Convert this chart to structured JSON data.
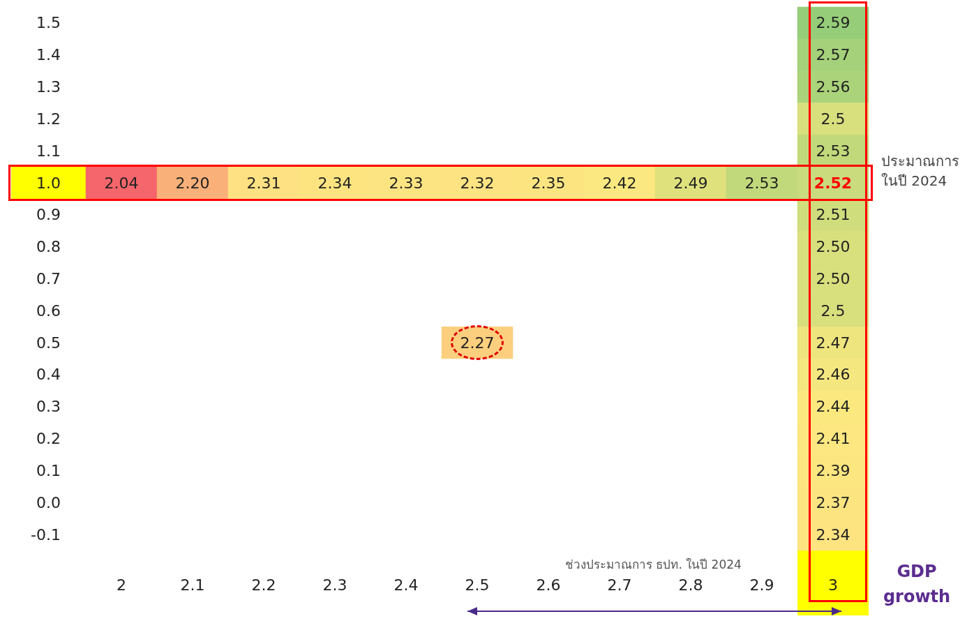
{
  "chart_data": {
    "type": "heatmap",
    "xlabel": "GDP growth",
    "categories": [
      "2",
      "2.1",
      "2.2",
      "2.3",
      "2.4",
      "2.5",
      "2.6",
      "2.7",
      "2.8",
      "2.9",
      "3"
    ],
    "y_categories": [
      "1.5",
      "1.4",
      "1.3",
      "1.2",
      "1.1",
      "1.0",
      "0.9",
      "0.8",
      "0.7",
      "0.6",
      "0.5",
      "0.4",
      "0.3",
      "0.2",
      "0.1",
      "0.0",
      "-0.1"
    ],
    "cells": [
      [
        null,
        null,
        null,
        null,
        null,
        null,
        null,
        null,
        null,
        null,
        2.59
      ],
      [
        null,
        null,
        null,
        null,
        null,
        null,
        null,
        null,
        null,
        null,
        2.57
      ],
      [
        null,
        null,
        null,
        null,
        null,
        null,
        null,
        null,
        null,
        null,
        2.56
      ],
      [
        null,
        null,
        null,
        null,
        null,
        null,
        null,
        null,
        null,
        null,
        2.5
      ],
      [
        null,
        null,
        null,
        null,
        null,
        null,
        null,
        null,
        null,
        null,
        2.53
      ],
      [
        2.04,
        2.2,
        2.31,
        2.34,
        2.33,
        2.32,
        2.35,
        2.42,
        2.49,
        2.53,
        2.52
      ],
      [
        null,
        null,
        null,
        null,
        null,
        null,
        null,
        null,
        null,
        null,
        2.51
      ],
      [
        null,
        null,
        null,
        null,
        null,
        null,
        null,
        null,
        null,
        null,
        2.5
      ],
      [
        null,
        null,
        null,
        null,
        null,
        null,
        null,
        null,
        null,
        null,
        2.5
      ],
      [
        null,
        null,
        null,
        null,
        null,
        null,
        null,
        null,
        null,
        null,
        2.5
      ],
      [
        null,
        null,
        null,
        null,
        null,
        2.27,
        null,
        null,
        null,
        null,
        2.47
      ],
      [
        null,
        null,
        null,
        null,
        null,
        null,
        null,
        null,
        null,
        null,
        2.46
      ],
      [
        null,
        null,
        null,
        null,
        null,
        null,
        null,
        null,
        null,
        null,
        2.44
      ],
      [
        null,
        null,
        null,
        null,
        null,
        null,
        null,
        null,
        null,
        null,
        2.41
      ],
      [
        null,
        null,
        null,
        null,
        null,
        null,
        null,
        null,
        null,
        null,
        2.39
      ],
      [
        null,
        null,
        null,
        null,
        null,
        null,
        null,
        null,
        null,
        null,
        2.37
      ],
      [
        null,
        null,
        null,
        null,
        null,
        null,
        null,
        null,
        null,
        null,
        2.34
      ]
    ],
    "cell_labels": [
      [
        null,
        null,
        null,
        null,
        null,
        null,
        null,
        null,
        null,
        null,
        "2.59"
      ],
      [
        null,
        null,
        null,
        null,
        null,
        null,
        null,
        null,
        null,
        null,
        "2.57"
      ],
      [
        null,
        null,
        null,
        null,
        null,
        null,
        null,
        null,
        null,
        null,
        "2.56"
      ],
      [
        null,
        null,
        null,
        null,
        null,
        null,
        null,
        null,
        null,
        null,
        "2.5"
      ],
      [
        null,
        null,
        null,
        null,
        null,
        null,
        null,
        null,
        null,
        null,
        "2.53"
      ],
      [
        "2.04",
        "2.20",
        "2.31",
        "2.34",
        "2.33",
        "2.32",
        "2.35",
        "2.42",
        "2.49",
        "2.53",
        "2.52"
      ],
      [
        null,
        null,
        null,
        null,
        null,
        null,
        null,
        null,
        null,
        null,
        "2.51"
      ],
      [
        null,
        null,
        null,
        null,
        null,
        null,
        null,
        null,
        null,
        null,
        "2.50"
      ],
      [
        null,
        null,
        null,
        null,
        null,
        null,
        null,
        null,
        null,
        null,
        "2.50"
      ],
      [
        null,
        null,
        null,
        null,
        null,
        null,
        null,
        null,
        null,
        null,
        "2.5"
      ],
      [
        null,
        null,
        null,
        null,
        null,
        "2.27",
        null,
        null,
        null,
        null,
        "2.47"
      ],
      [
        null,
        null,
        null,
        null,
        null,
        null,
        null,
        null,
        null,
        null,
        "2.46"
      ],
      [
        null,
        null,
        null,
        null,
        null,
        null,
        null,
        null,
        null,
        null,
        "2.44"
      ],
      [
        null,
        null,
        null,
        null,
        null,
        null,
        null,
        null,
        null,
        null,
        "2.41"
      ],
      [
        null,
        null,
        null,
        null,
        null,
        null,
        null,
        null,
        null,
        null,
        "2.39"
      ],
      [
        null,
        null,
        null,
        null,
        null,
        null,
        null,
        null,
        null,
        null,
        "2.37"
      ],
      [
        null,
        null,
        null,
        null,
        null,
        null,
        null,
        null,
        null,
        null,
        "2.34"
      ]
    ],
    "annotations": [
      "ประมาณการ ในปี 2024",
      "ช่วงประมาณการ ธปท. ในปี 2024"
    ]
  }
}
